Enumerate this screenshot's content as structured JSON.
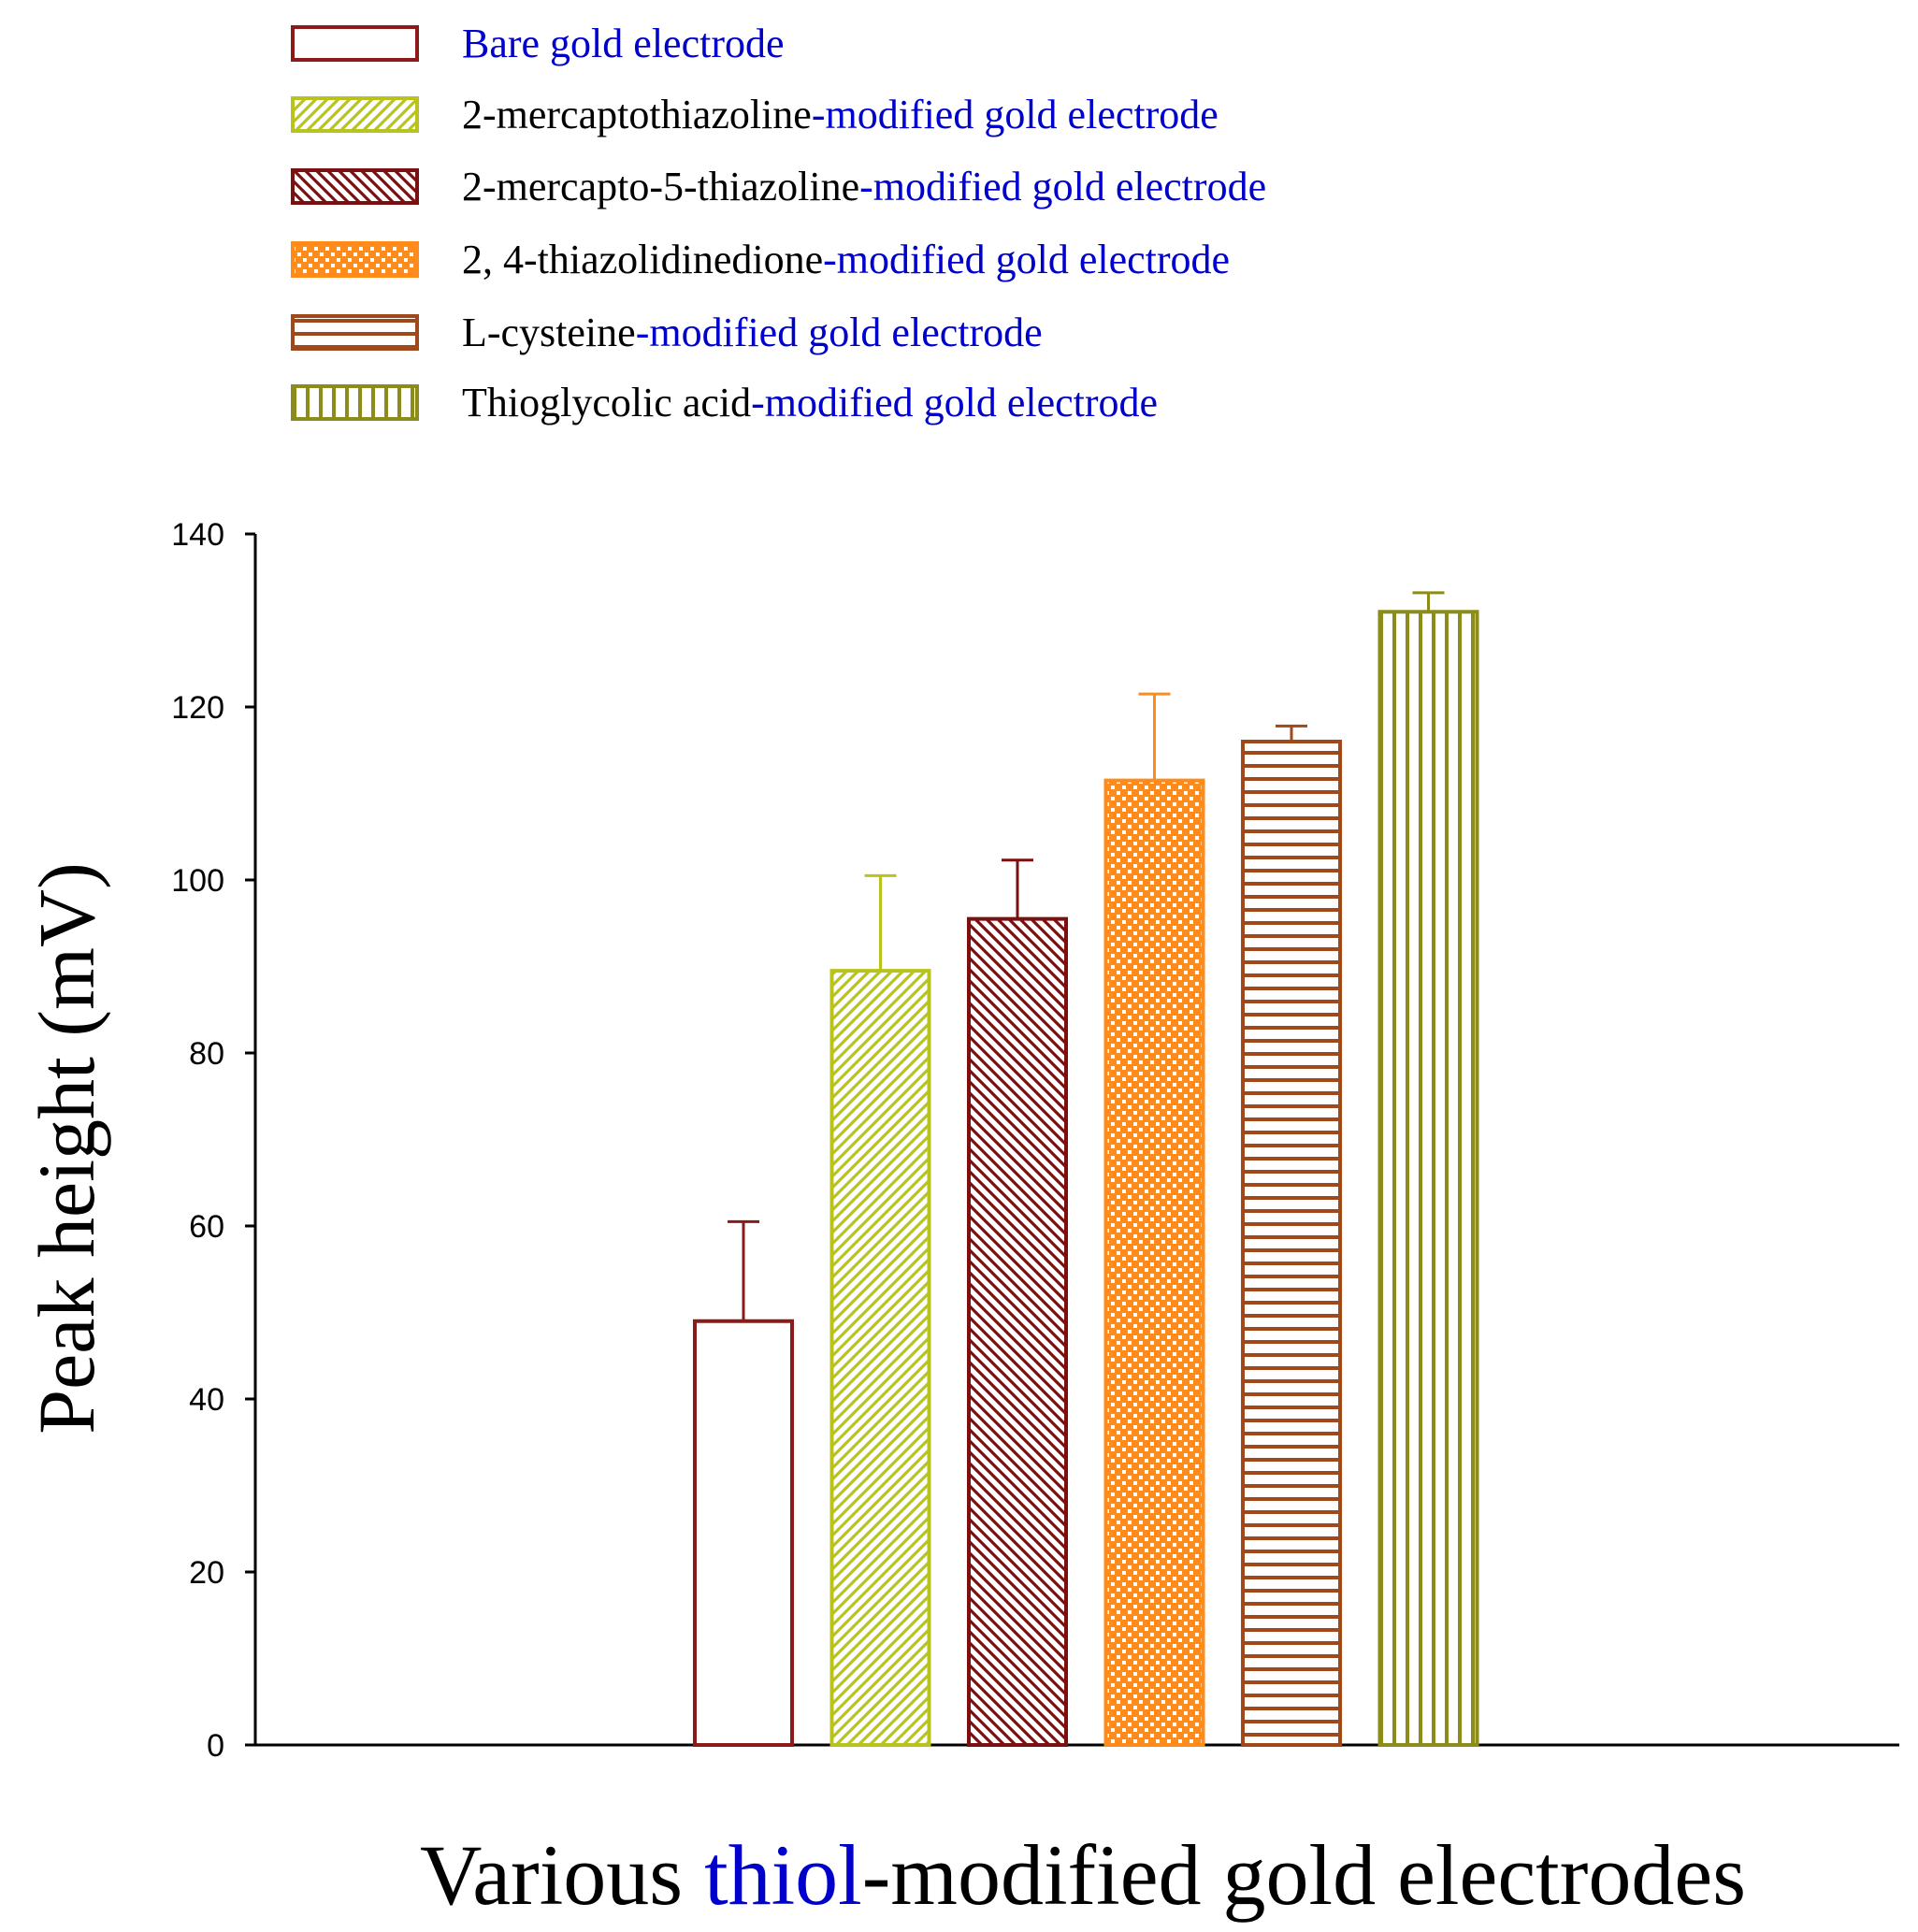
{
  "chart_data": {
    "type": "bar",
    "title": "",
    "xlabel": {
      "parts": [
        {
          "text": "Various ",
          "color": "#000000"
        },
        {
          "text": "thiol",
          "color": "#0000cc"
        },
        {
          "text": "-modified gold electrodes",
          "color": "#000000"
        }
      ]
    },
    "ylabel": "Peak height (mV)",
    "ylim": [
      0,
      140
    ],
    "yticks": [
      0,
      20,
      40,
      60,
      80,
      100,
      120,
      140
    ],
    "grid": false,
    "legend_position": "top-left",
    "series": [
      {
        "name": "Bare gold electrode",
        "legend_parts": [
          {
            "text": "Bare gold electrode",
            "color": "#0000cc"
          }
        ],
        "value": 49,
        "error": 11.5,
        "color": "#8b1a1a",
        "pattern": "none"
      },
      {
        "name": "2-mercaptothiazoline-modified gold electrode",
        "legend_parts": [
          {
            "text": "2-mercaptothiazoline",
            "color": "#000000"
          },
          {
            "text": "-modified gold electrode",
            "color": "#0000cc"
          }
        ],
        "value": 89.5,
        "error": 11,
        "color": "#b8c41c",
        "pattern": "diag-up"
      },
      {
        "name": "2-mercapto-5-thiazoline-modified gold electrode",
        "legend_parts": [
          {
            "text": "2-mercapto-5-thiazoline",
            "color": "#000000"
          },
          {
            "text": "-modified gold electrode",
            "color": "#0000cc"
          }
        ],
        "value": 95.5,
        "error": 6.8,
        "color": "#7a1010",
        "pattern": "diag-down"
      },
      {
        "name": "2, 4-thiazolidinedione-modified gold electrode",
        "legend_parts": [
          {
            "text": "2, 4-thiazolidinedione",
            "color": "#000000"
          },
          {
            "text": "-modified gold electrode",
            "color": "#0000cc"
          }
        ],
        "value": 111.5,
        "error": 10,
        "color": "#ff8c1a",
        "pattern": "checker"
      },
      {
        "name": "L-cysteine-modified gold electrode",
        "legend_parts": [
          {
            "text": "L-cysteine",
            "color": "#000000"
          },
          {
            "text": "-modified gold electrode",
            "color": "#0000cc"
          }
        ],
        "value": 116,
        "error": 1.8,
        "color": "#a0481a",
        "pattern": "horizontal"
      },
      {
        "name": "Thioglycolic acid-modified gold electrode",
        "legend_parts": [
          {
            "text": "Thioglycolic acid",
            "color": "#000000"
          },
          {
            "text": "-modified gold electrode",
            "color": "#0000cc"
          }
        ],
        "value": 131,
        "error": 2.2,
        "color": "#8c8c1a",
        "pattern": "vertical"
      }
    ]
  }
}
